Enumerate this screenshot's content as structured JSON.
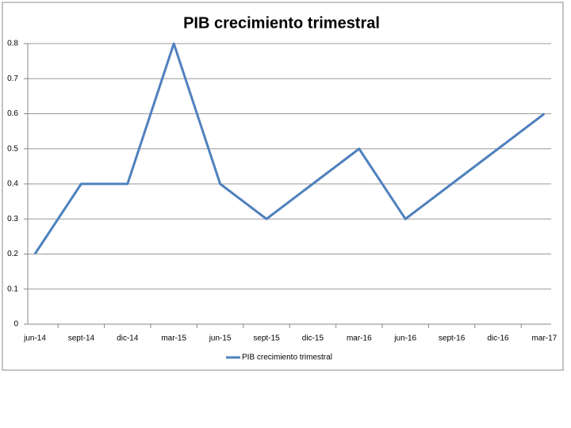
{
  "chart_data": {
    "type": "line",
    "title": "PIB crecimiento trimestral",
    "categories": [
      "jun-14",
      "sept-14",
      "dic-14",
      "mar-15",
      "jun-15",
      "sept-15",
      "dic-15",
      "mar-16",
      "jun-16",
      "sept-16",
      "dic-16",
      "mar-17"
    ],
    "series": [
      {
        "name": "PIB crecimiento trimestral",
        "color": "#4f81bd",
        "values": [
          0.2,
          0.4,
          0.4,
          0.8,
          0.4,
          0.3,
          0.4,
          0.5,
          0.3,
          0.4,
          0.5,
          0.6
        ]
      }
    ],
    "ylim": [
      0,
      0.8
    ],
    "yticks": [
      0,
      0.1,
      0.2,
      0.3,
      0.4,
      0.5,
      0.6,
      0.7,
      0.8
    ],
    "grid": true,
    "legend": "bottom"
  }
}
